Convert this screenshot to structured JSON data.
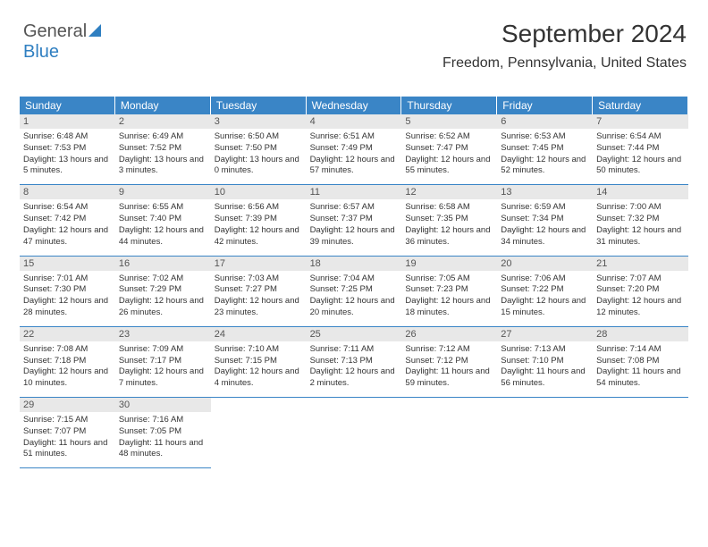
{
  "logo": {
    "part1": "General",
    "part2": "Blue"
  },
  "title": "September 2024",
  "location": "Freedom, Pennsylvania, United States",
  "colors": {
    "header_bg": "#3a85c6",
    "header_fg": "#ffffff",
    "daynum_bg": "#e8e8e8",
    "cell_border": "#3a85c6",
    "logo_blue": "#2f7fc1"
  },
  "dow": [
    "Sunday",
    "Monday",
    "Tuesday",
    "Wednesday",
    "Thursday",
    "Friday",
    "Saturday"
  ],
  "days": [
    {
      "n": 1,
      "sr": "6:48 AM",
      "ss": "7:53 PM",
      "dl": "13 hours and 5 minutes."
    },
    {
      "n": 2,
      "sr": "6:49 AM",
      "ss": "7:52 PM",
      "dl": "13 hours and 3 minutes."
    },
    {
      "n": 3,
      "sr": "6:50 AM",
      "ss": "7:50 PM",
      "dl": "13 hours and 0 minutes."
    },
    {
      "n": 4,
      "sr": "6:51 AM",
      "ss": "7:49 PM",
      "dl": "12 hours and 57 minutes."
    },
    {
      "n": 5,
      "sr": "6:52 AM",
      "ss": "7:47 PM",
      "dl": "12 hours and 55 minutes."
    },
    {
      "n": 6,
      "sr": "6:53 AM",
      "ss": "7:45 PM",
      "dl": "12 hours and 52 minutes."
    },
    {
      "n": 7,
      "sr": "6:54 AM",
      "ss": "7:44 PM",
      "dl": "12 hours and 50 minutes."
    },
    {
      "n": 8,
      "sr": "6:54 AM",
      "ss": "7:42 PM",
      "dl": "12 hours and 47 minutes."
    },
    {
      "n": 9,
      "sr": "6:55 AM",
      "ss": "7:40 PM",
      "dl": "12 hours and 44 minutes."
    },
    {
      "n": 10,
      "sr": "6:56 AM",
      "ss": "7:39 PM",
      "dl": "12 hours and 42 minutes."
    },
    {
      "n": 11,
      "sr": "6:57 AM",
      "ss": "7:37 PM",
      "dl": "12 hours and 39 minutes."
    },
    {
      "n": 12,
      "sr": "6:58 AM",
      "ss": "7:35 PM",
      "dl": "12 hours and 36 minutes."
    },
    {
      "n": 13,
      "sr": "6:59 AM",
      "ss": "7:34 PM",
      "dl": "12 hours and 34 minutes."
    },
    {
      "n": 14,
      "sr": "7:00 AM",
      "ss": "7:32 PM",
      "dl": "12 hours and 31 minutes."
    },
    {
      "n": 15,
      "sr": "7:01 AM",
      "ss": "7:30 PM",
      "dl": "12 hours and 28 minutes."
    },
    {
      "n": 16,
      "sr": "7:02 AM",
      "ss": "7:29 PM",
      "dl": "12 hours and 26 minutes."
    },
    {
      "n": 17,
      "sr": "7:03 AM",
      "ss": "7:27 PM",
      "dl": "12 hours and 23 minutes."
    },
    {
      "n": 18,
      "sr": "7:04 AM",
      "ss": "7:25 PM",
      "dl": "12 hours and 20 minutes."
    },
    {
      "n": 19,
      "sr": "7:05 AM",
      "ss": "7:23 PM",
      "dl": "12 hours and 18 minutes."
    },
    {
      "n": 20,
      "sr": "7:06 AM",
      "ss": "7:22 PM",
      "dl": "12 hours and 15 minutes."
    },
    {
      "n": 21,
      "sr": "7:07 AM",
      "ss": "7:20 PM",
      "dl": "12 hours and 12 minutes."
    },
    {
      "n": 22,
      "sr": "7:08 AM",
      "ss": "7:18 PM",
      "dl": "12 hours and 10 minutes."
    },
    {
      "n": 23,
      "sr": "7:09 AM",
      "ss": "7:17 PM",
      "dl": "12 hours and 7 minutes."
    },
    {
      "n": 24,
      "sr": "7:10 AM",
      "ss": "7:15 PM",
      "dl": "12 hours and 4 minutes."
    },
    {
      "n": 25,
      "sr": "7:11 AM",
      "ss": "7:13 PM",
      "dl": "12 hours and 2 minutes."
    },
    {
      "n": 26,
      "sr": "7:12 AM",
      "ss": "7:12 PM",
      "dl": "11 hours and 59 minutes."
    },
    {
      "n": 27,
      "sr": "7:13 AM",
      "ss": "7:10 PM",
      "dl": "11 hours and 56 minutes."
    },
    {
      "n": 28,
      "sr": "7:14 AM",
      "ss": "7:08 PM",
      "dl": "11 hours and 54 minutes."
    },
    {
      "n": 29,
      "sr": "7:15 AM",
      "ss": "7:07 PM",
      "dl": "11 hours and 51 minutes."
    },
    {
      "n": 30,
      "sr": "7:16 AM",
      "ss": "7:05 PM",
      "dl": "11 hours and 48 minutes."
    }
  ],
  "labels": {
    "sunrise": "Sunrise:",
    "sunset": "Sunset:",
    "daylight": "Daylight:"
  },
  "calendar": {
    "start_dow": 0,
    "trailing_empty": 5
  }
}
